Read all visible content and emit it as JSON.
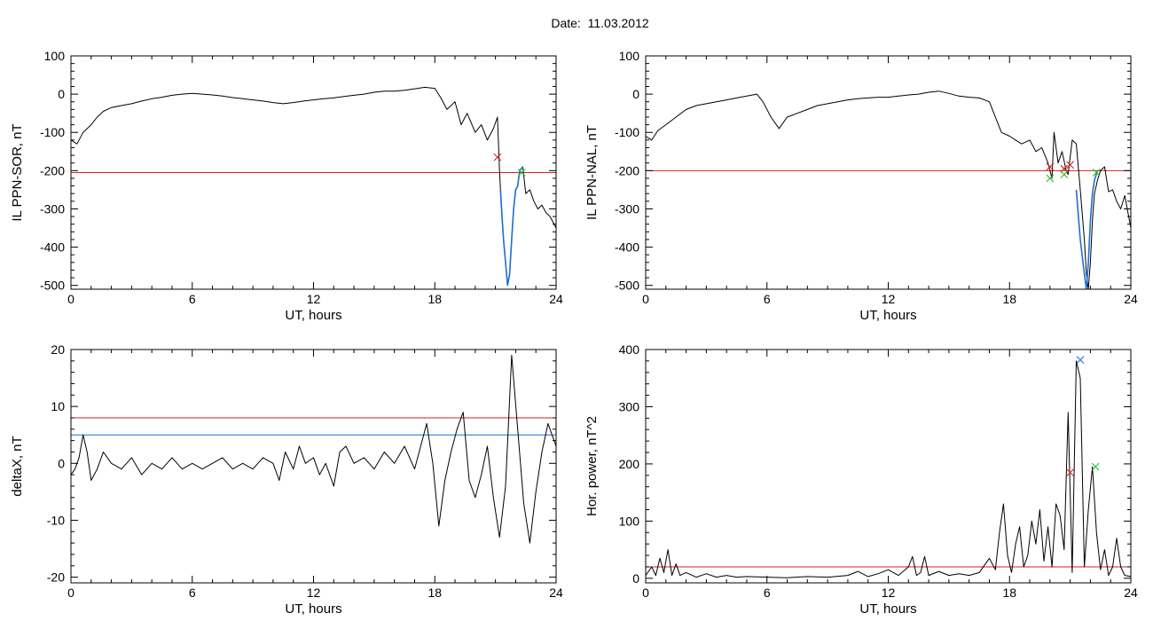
{
  "header": {
    "date_label": "Date:",
    "date_value": "11.03.2012"
  },
  "colors": {
    "trace": "#000000",
    "threshold_red": "#d42020",
    "threshold_blue": "#1f6fd0",
    "segment_blue": "#1f6fd0",
    "marker_red": "#d42020",
    "marker_green": "#22c022"
  },
  "chart_data": [
    {
      "id": "sor",
      "type": "line",
      "xlabel": "UT, hours",
      "ylabel": "IL PPN-SOR, nT",
      "xlim": [
        0,
        24
      ],
      "ylim": [
        -510,
        100
      ],
      "xticks": [
        0,
        6,
        12,
        18,
        24
      ],
      "yticks": [
        100,
        0,
        -100,
        -200,
        -300,
        -400,
        -500
      ],
      "series": [
        {
          "x": [
            0,
            0.3,
            0.6,
            1,
            1.3,
            1.6,
            2,
            2.5,
            3,
            3.5,
            4,
            4.5,
            5,
            5.5,
            6,
            6.5,
            7,
            7.5,
            8,
            8.5,
            9,
            9.5,
            10,
            10.5,
            11,
            11.5,
            12,
            12.5,
            13,
            13.5,
            14,
            14.5,
            15,
            15.5,
            16,
            16.5,
            17,
            17.5,
            18,
            18.3,
            18.6,
            19,
            19.3,
            19.6,
            20,
            20.3,
            20.6,
            20.9,
            21.1,
            21.2,
            21.25,
            21.3,
            21.4,
            21.5,
            21.6,
            21.7,
            21.8,
            21.9,
            22,
            22.1,
            22.2,
            22.35,
            22.5,
            22.7,
            22.9,
            23.1,
            23.3,
            23.5,
            23.7,
            24
          ],
          "y": [
            -120,
            -130,
            -100,
            -80,
            -60,
            -45,
            -35,
            -30,
            -25,
            -18,
            -12,
            -8,
            -3,
            0,
            2,
            0,
            -2,
            -5,
            -9,
            -12,
            -15,
            -18,
            -22,
            -25,
            -22,
            -18,
            -15,
            -12,
            -10,
            -6,
            -3,
            0,
            5,
            8,
            8,
            10,
            14,
            18,
            15,
            -10,
            -40,
            -20,
            -80,
            -50,
            -100,
            -80,
            -120,
            -90,
            -60,
            -200,
            -250,
            -300,
            -380,
            -440,
            -500,
            -470,
            -380,
            -300,
            -250,
            -240,
            -200,
            -190,
            -260,
            -250,
            -280,
            -300,
            -290,
            -310,
            -320,
            -350
          ]
        }
      ],
      "thresholds": [
        {
          "y": -205,
          "color": "#d42020"
        }
      ],
      "segment": {
        "x": [
          21.25,
          21.3,
          21.4,
          21.5,
          21.6,
          21.7,
          21.8,
          21.9,
          22,
          22.1,
          22.2,
          22.35
        ],
        "y": [
          -250,
          -300,
          -380,
          -440,
          -500,
          -470,
          -380,
          -300,
          -250,
          -240,
          -200,
          -190
        ],
        "color": "#1f6fd0"
      },
      "markers": [
        {
          "x": 21.1,
          "y": -165,
          "color": "#d42020"
        },
        {
          "x": 22.3,
          "y": -205,
          "color": "#22c022"
        }
      ]
    },
    {
      "id": "nal",
      "type": "line",
      "xlabel": "UT, hours",
      "ylabel": "IL PPN-NAL, nT",
      "xlim": [
        0,
        24
      ],
      "ylim": [
        -510,
        100
      ],
      "xticks": [
        0,
        6,
        12,
        18,
        24
      ],
      "yticks": [
        100,
        0,
        -100,
        -200,
        -300,
        -400,
        -500
      ],
      "series": [
        {
          "x": [
            0,
            0.3,
            0.6,
            1,
            1.5,
            2,
            2.5,
            3,
            3.5,
            4,
            4.5,
            5,
            5.5,
            5.8,
            6.2,
            6.6,
            7,
            7.5,
            8,
            8.5,
            9,
            9.5,
            10,
            10.5,
            11,
            11.5,
            12,
            12.5,
            13,
            13.5,
            14,
            14.5,
            15,
            15.5,
            16,
            16.5,
            17,
            17.3,
            17.6,
            18,
            18.3,
            18.6,
            19,
            19.3,
            19.6,
            19.9,
            20.1,
            20.2,
            20.4,
            20.6,
            20.8,
            20.9,
            21.1,
            21.3,
            21.5,
            21.7,
            21.8,
            21.9,
            22,
            22.1,
            22.2,
            22.35,
            22.5,
            22.7,
            22.9,
            23.1,
            23.3,
            23.5,
            23.7,
            24
          ],
          "y": [
            -110,
            -120,
            -95,
            -80,
            -60,
            -40,
            -30,
            -25,
            -20,
            -15,
            -10,
            -5,
            0,
            -20,
            -60,
            -90,
            -60,
            -50,
            -40,
            -30,
            -25,
            -20,
            -15,
            -12,
            -10,
            -8,
            -8,
            -5,
            -2,
            0,
            5,
            8,
            2,
            -5,
            -8,
            -10,
            -20,
            -60,
            -100,
            -110,
            -120,
            -130,
            -120,
            -150,
            -140,
            -180,
            -220,
            -100,
            -180,
            -150,
            -200,
            -210,
            -120,
            -130,
            -250,
            -380,
            -470,
            -510,
            -440,
            -330,
            -260,
            -225,
            -200,
            -190,
            -255,
            -250,
            -280,
            -300,
            -265,
            -350
          ]
        }
      ],
      "thresholds": [
        {
          "y": -200,
          "color": "#d42020"
        }
      ],
      "segment": {
        "x": [
          21.3,
          21.5,
          21.7,
          21.8,
          21.9,
          22,
          22.1,
          22.2,
          22.35
        ],
        "y": [
          -250,
          -380,
          -470,
          -510,
          -440,
          -330,
          -260,
          -225,
          -200
        ],
        "color": "#1f6fd0"
      },
      "markers": [
        {
          "x": 20.0,
          "y": -190,
          "color": "#d42020"
        },
        {
          "x": 20.0,
          "y": -220,
          "color": "#22c022"
        },
        {
          "x": 20.7,
          "y": -195,
          "color": "#d42020"
        },
        {
          "x": 20.7,
          "y": -210,
          "color": "#22c022"
        },
        {
          "x": 21.0,
          "y": -185,
          "color": "#d42020"
        },
        {
          "x": 22.3,
          "y": -205,
          "color": "#22c022"
        }
      ]
    },
    {
      "id": "deltax",
      "type": "line",
      "xlabel": "UT, hours",
      "ylabel": "deltaX, nT",
      "xlim": [
        0,
        24
      ],
      "ylim": [
        -21,
        20
      ],
      "xticks": [
        0,
        6,
        12,
        18,
        24
      ],
      "yticks": [
        20,
        10,
        0,
        -10,
        -20
      ],
      "series": [
        {
          "x": [
            0,
            0.2,
            0.4,
            0.6,
            0.8,
            1,
            1.3,
            1.6,
            2,
            2.5,
            3,
            3.5,
            4,
            4.5,
            5,
            5.5,
            6,
            6.5,
            7,
            7.5,
            8,
            8.5,
            9,
            9.5,
            10,
            10.3,
            10.6,
            11,
            11.3,
            11.6,
            12,
            12.3,
            12.6,
            13,
            13.3,
            13.6,
            14,
            14.5,
            15,
            15.5,
            16,
            16.5,
            17,
            17.3,
            17.6,
            17.9,
            18.2,
            18.5,
            18.8,
            19.1,
            19.4,
            19.7,
            20,
            20.3,
            20.6,
            20.9,
            21.2,
            21.5,
            21.8,
            22.1,
            22.4,
            22.7,
            23,
            23.3,
            23.6,
            24
          ],
          "y": [
            -2,
            -1,
            1,
            5,
            2,
            -3,
            -1,
            2,
            0,
            -1,
            1,
            -2,
            0,
            -1,
            1,
            -1,
            0,
            -1,
            0,
            1,
            -1,
            0,
            -1,
            1,
            0,
            -3,
            2,
            -1,
            3,
            0,
            1,
            -2,
            0,
            -4,
            2,
            3,
            0,
            1,
            -1,
            2,
            0,
            3,
            -1,
            3,
            7,
            0,
            -11,
            -3,
            2,
            6,
            9,
            -3,
            -6,
            -2,
            3,
            -6,
            -13,
            -4,
            19,
            6,
            -7,
            -14,
            -5,
            2,
            7,
            3
          ]
        }
      ],
      "thresholds": [
        {
          "y": 8,
          "color": "#d42020"
        },
        {
          "y": 5,
          "color": "#1f6fd0"
        }
      ],
      "markers": []
    },
    {
      "id": "power",
      "type": "line",
      "xlabel": "UT, hours",
      "ylabel": "Hor. power, nT^2",
      "xlim": [
        0,
        24
      ],
      "ylim": [
        -8,
        400
      ],
      "xticks": [
        0,
        6,
        12,
        18,
        24
      ],
      "yticks": [
        400,
        300,
        200,
        100,
        0
      ],
      "series": [
        {
          "x": [
            0,
            0.3,
            0.5,
            0.7,
            0.9,
            1.1,
            1.3,
            1.5,
            1.7,
            2,
            2.5,
            3,
            3.5,
            4,
            4.5,
            5,
            6,
            7,
            8,
            9,
            10,
            10.5,
            11,
            11.5,
            12,
            12.5,
            13,
            13.2,
            13.4,
            13.6,
            13.8,
            14,
            14.5,
            15,
            15.5,
            16,
            16.5,
            17,
            17.3,
            17.5,
            17.7,
            17.9,
            18.1,
            18.3,
            18.5,
            18.7,
            18.9,
            19.1,
            19.3,
            19.5,
            19.7,
            19.9,
            20.1,
            20.3,
            20.5,
            20.7,
            20.9,
            21.1,
            21.3,
            21.5,
            21.7,
            21.9,
            22.1,
            22.3,
            22.5,
            22.7,
            22.9,
            23.1,
            23.3,
            23.5,
            23.7,
            24
          ],
          "y": [
            5,
            20,
            5,
            35,
            10,
            50,
            5,
            25,
            5,
            10,
            2,
            8,
            2,
            5,
            2,
            3,
            2,
            1,
            3,
            2,
            5,
            12,
            3,
            8,
            15,
            5,
            20,
            38,
            5,
            10,
            38,
            5,
            12,
            5,
            8,
            5,
            10,
            35,
            15,
            80,
            130,
            40,
            10,
            60,
            90,
            20,
            40,
            100,
            60,
            120,
            30,
            90,
            20,
            130,
            110,
            50,
            290,
            10,
            380,
            350,
            20,
            120,
            195,
            80,
            15,
            50,
            5,
            20,
            70,
            20,
            5,
            3
          ]
        }
      ],
      "thresholds": [
        {
          "y": 20,
          "color": "#d42020"
        }
      ],
      "markers": [
        {
          "x": 21.5,
          "y": 382,
          "color": "#1f6fd0"
        },
        {
          "x": 21.0,
          "y": 185,
          "color": "#d42020"
        },
        {
          "x": 22.25,
          "y": 195,
          "color": "#22c022"
        }
      ]
    }
  ]
}
